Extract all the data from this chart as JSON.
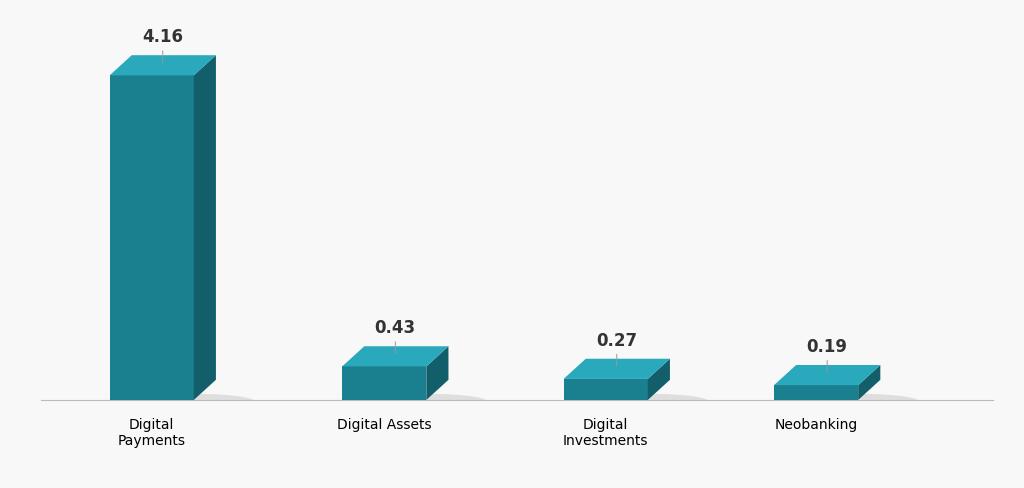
{
  "categories": [
    "Digital\nPayments",
    "Digital Assets",
    "Digital\nInvestments",
    "Neobanking"
  ],
  "values": [
    4.16,
    0.43,
    0.27,
    0.19
  ],
  "bar_color_front": "#1a7f8e",
  "bar_color_side": "#125f6b",
  "bar_color_top": "#2aa8bc",
  "shadow_color": "#c0c0c0",
  "background_color": "#f8f8f8",
  "label_color": "#333333",
  "label_fontsize": 12,
  "tick_fontsize": 11,
  "ylim": [
    0,
    4.7
  ],
  "bar_width": 0.38,
  "depth_x": 0.1,
  "depth_y_ratio": 0.055,
  "x_positions": [
    0.5,
    1.55,
    2.55,
    3.5
  ],
  "xlim": [
    0.0,
    4.3
  ]
}
